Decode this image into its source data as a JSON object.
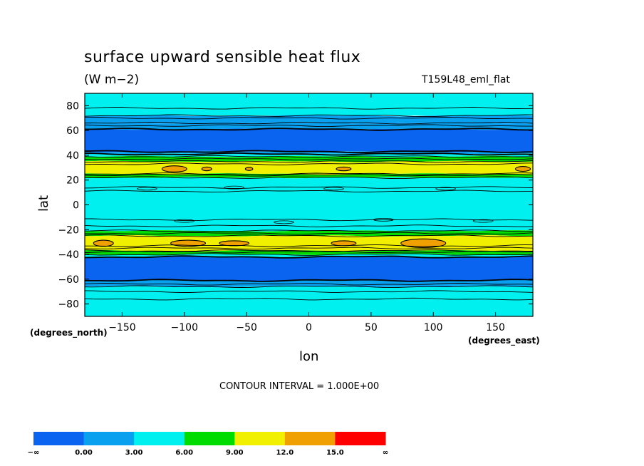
{
  "chart_data": {
    "type": "heatmap",
    "title": "surface upward sensible heat flux",
    "units": "(W m−2)",
    "run_name": "T159L48_eml_flat",
    "xlabel": "lon",
    "ylabel": "lat",
    "x_units_label": "(degrees_east)",
    "y_units_label": "(degrees_north)",
    "xlim": [
      -180,
      180
    ],
    "ylim": [
      -90,
      90
    ],
    "x_ticks": [
      -150,
      -100,
      -50,
      0,
      50,
      100,
      150
    ],
    "x_tick_labels": [
      "−150",
      "−100",
      "−50",
      "0",
      "50",
      "100",
      "150"
    ],
    "y_ticks": [
      80,
      60,
      40,
      20,
      0,
      -20,
      -40,
      -60,
      -80
    ],
    "y_tick_labels": [
      "80",
      "60",
      "40",
      "20",
      "0",
      "−20",
      "−40",
      "−60",
      "−80"
    ],
    "contour_interval_text": "CONTOUR INTERVAL = 1.000E+00",
    "colorbar": {
      "levels": [
        "−∞",
        "0.00",
        "3.00",
        "6.00",
        "9.00",
        "12.0",
        "15.0",
        "∞"
      ],
      "colors": [
        "#0a64f0",
        "#0aa0f0",
        "#00f0f0",
        "#00dc00",
        "#f0f000",
        "#f0a000",
        "#ff0000"
      ]
    },
    "zonal_bands": [
      {
        "lat_min": 72,
        "lat_max": 90,
        "value": 4.5
      },
      {
        "lat_min": 66,
        "lat_max": 72,
        "value": 1.5
      },
      {
        "lat_min": 61,
        "lat_max": 66,
        "value": 1.5
      },
      {
        "lat_min": 43,
        "lat_max": 61,
        "value": -1.0
      },
      {
        "lat_min": 41,
        "lat_max": 43,
        "value": 1.5
      },
      {
        "lat_min": 39,
        "lat_max": 41,
        "value": 4.5
      },
      {
        "lat_min": 35,
        "lat_max": 39,
        "value": 7.5
      },
      {
        "lat_min": 25,
        "lat_max": 35,
        "value": 10.5
      },
      {
        "lat_min": 22,
        "lat_max": 25,
        "value": 7.5
      },
      {
        "lat_min": -21,
        "lat_max": 22,
        "value": 4.5
      },
      {
        "lat_min": -25,
        "lat_max": -21,
        "value": 7.5
      },
      {
        "lat_min": -37,
        "lat_max": -25,
        "value": 10.5
      },
      {
        "lat_min": -40,
        "lat_max": -37,
        "value": 7.5
      },
      {
        "lat_min": -42,
        "lat_max": -40,
        "value": 4.5
      },
      {
        "lat_min": -61,
        "lat_max": -42,
        "value": -1.0
      },
      {
        "lat_min": -66,
        "lat_max": -61,
        "value": 1.5
      },
      {
        "lat_min": -90,
        "lat_max": -66,
        "value": 4.5
      }
    ],
    "warm_spots": [
      {
        "lon": -108,
        "lat": 29,
        "dlon": 10,
        "dlat": 2.5,
        "value": 13.5
      },
      {
        "lon": -82,
        "lat": 29,
        "dlon": 4,
        "dlat": 1.5,
        "value": 13.5
      },
      {
        "lon": -48,
        "lat": 29,
        "dlon": 3,
        "dlat": 1.3,
        "value": 13.5
      },
      {
        "lon": 28,
        "lat": 29,
        "dlon": 6,
        "dlat": 1.5,
        "value": 13.5
      },
      {
        "lon": 172,
        "lat": 29,
        "dlon": 6,
        "dlat": 2,
        "value": 13.5
      },
      {
        "lon": -165,
        "lat": -31,
        "dlon": 8,
        "dlat": 2.5,
        "value": 13.5
      },
      {
        "lon": -97,
        "lat": -31,
        "dlon": 14,
        "dlat": 2.5,
        "value": 13.5
      },
      {
        "lon": -60,
        "lat": -31,
        "dlon": 12,
        "dlat": 2,
        "value": 13.5
      },
      {
        "lon": 28,
        "lat": -31,
        "dlon": 10,
        "dlat": 2,
        "value": 13.5
      },
      {
        "lon": 92,
        "lat": -31,
        "dlon": 18,
        "dlat": 3.5,
        "value": 13.5
      }
    ]
  }
}
